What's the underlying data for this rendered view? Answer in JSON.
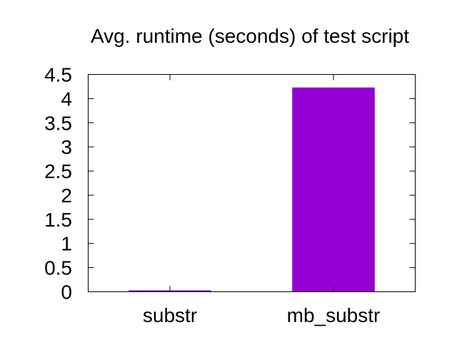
{
  "chart_data": {
    "type": "bar",
    "title": "Avg. runtime (seconds) of test script",
    "xlabel": "",
    "ylabel": "",
    "categories": [
      "substr",
      "mb_substr"
    ],
    "values": [
      0.03,
      4.23
    ],
    "ylim": [
      0,
      4.5
    ],
    "yticks": [
      "0",
      "0.5",
      "1",
      "1.5",
      "2",
      "2.5",
      "3",
      "3.5",
      "4",
      "4.5"
    ],
    "ytick_values": [
      0,
      0.5,
      1,
      1.5,
      2,
      2.5,
      3,
      3.5,
      4,
      4.5
    ],
    "bar_color": "#9400d3",
    "grid": false,
    "legend": "none"
  }
}
